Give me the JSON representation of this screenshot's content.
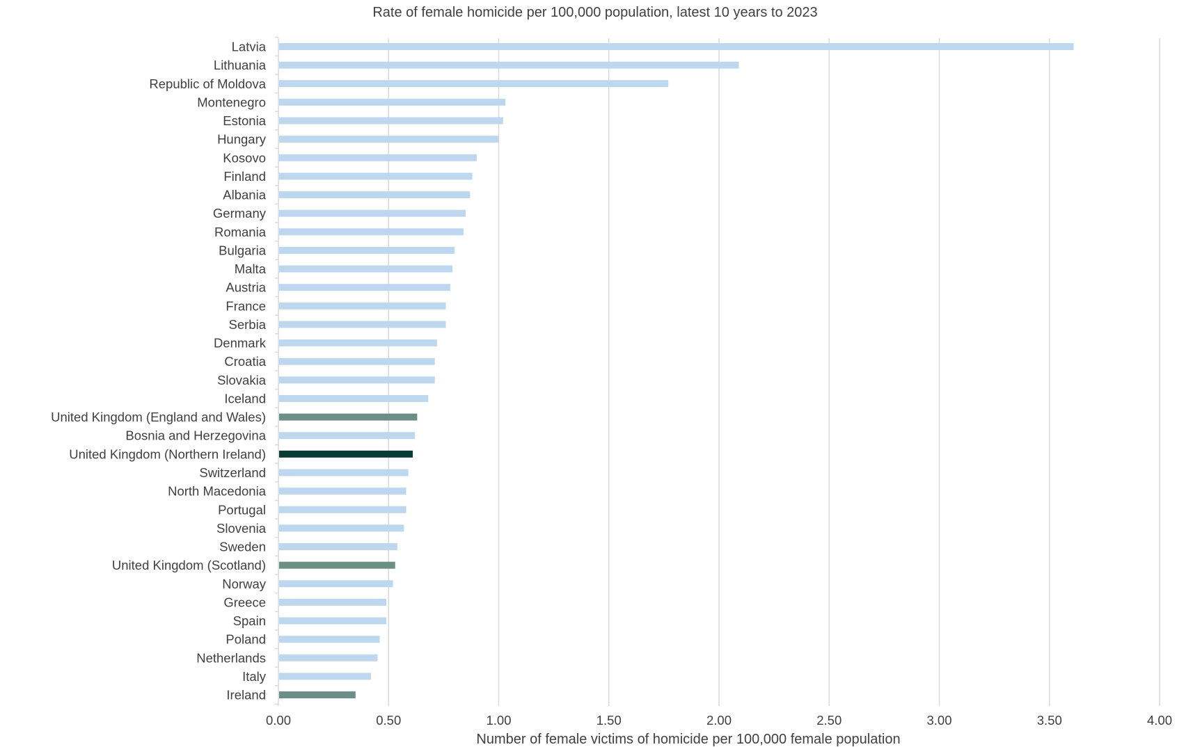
{
  "chart_data": {
    "type": "bar",
    "orientation": "horizontal",
    "title": "Rate of female homicide per 100,000 population, latest 10 years to 2023",
    "xlabel": "Number of female victims of homicide per 100,000 female population",
    "ylabel": "",
    "xlim": [
      0,
      4
    ],
    "xticks": [
      "0.00",
      "0.50",
      "1.00",
      "1.50",
      "2.00",
      "2.50",
      "3.00",
      "3.50",
      "4.00"
    ],
    "grid": "vertical",
    "colors": {
      "default": "#bdd7ee",
      "uk_other": "#6b8e85",
      "uk_northern_ireland": "#0b3b35",
      "gridline": "#d9d9d9",
      "text": "#404040"
    },
    "categories": [
      "Latvia",
      "Lithuania",
      "Republic of Moldova",
      "Montenegro",
      "Estonia",
      "Hungary",
      "Kosovo",
      "Finland",
      "Albania",
      "Germany",
      "Romania",
      "Bulgaria",
      "Malta",
      "Austria",
      "France",
      "Serbia",
      "Denmark",
      "Croatia",
      "Slovakia",
      "Iceland",
      "United Kingdom (England and Wales)",
      "Bosnia and Herzegovina",
      "United Kingdom (Northern Ireland)",
      "Switzerland",
      "North Macedonia",
      "Portugal",
      "Slovenia",
      "Sweden",
      "United Kingdom (Scotland)",
      "Norway",
      "Greece",
      "Spain",
      "Poland",
      "Netherlands",
      "Italy",
      "Ireland"
    ],
    "values": [
      3.61,
      2.09,
      1.77,
      1.03,
      1.02,
      1.0,
      0.9,
      0.88,
      0.87,
      0.85,
      0.84,
      0.8,
      0.79,
      0.78,
      0.76,
      0.76,
      0.72,
      0.71,
      0.71,
      0.68,
      0.63,
      0.62,
      0.61,
      0.59,
      0.58,
      0.58,
      0.57,
      0.54,
      0.53,
      0.52,
      0.49,
      0.49,
      0.46,
      0.45,
      0.42,
      0.35
    ],
    "bar_colors": [
      "default",
      "default",
      "default",
      "default",
      "default",
      "default",
      "default",
      "default",
      "default",
      "default",
      "default",
      "default",
      "default",
      "default",
      "default",
      "default",
      "default",
      "default",
      "default",
      "default",
      "uk_other",
      "default",
      "uk_northern_ireland",
      "default",
      "default",
      "default",
      "default",
      "default",
      "uk_other",
      "default",
      "default",
      "default",
      "default",
      "default",
      "default",
      "uk_other"
    ]
  }
}
